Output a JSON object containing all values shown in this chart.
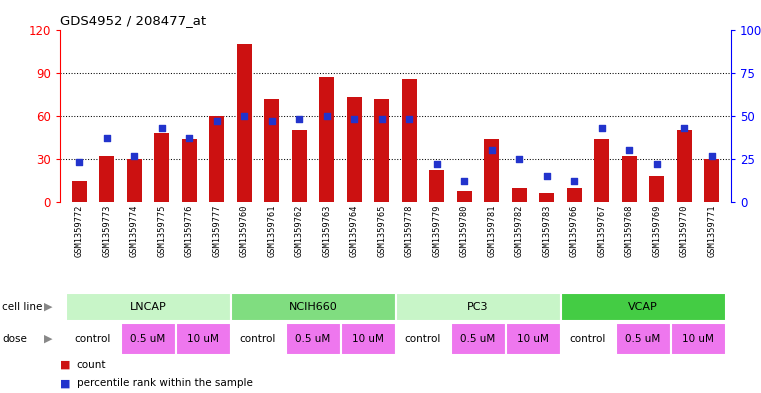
{
  "title": "GDS4952 / 208477_at",
  "samples": [
    "GSM1359772",
    "GSM1359773",
    "GSM1359774",
    "GSM1359775",
    "GSM1359776",
    "GSM1359777",
    "GSM1359760",
    "GSM1359761",
    "GSM1359762",
    "GSM1359763",
    "GSM1359764",
    "GSM1359765",
    "GSM1359778",
    "GSM1359779",
    "GSM1359780",
    "GSM1359781",
    "GSM1359782",
    "GSM1359783",
    "GSM1359766",
    "GSM1359767",
    "GSM1359768",
    "GSM1359769",
    "GSM1359770",
    "GSM1359771"
  ],
  "counts": [
    15,
    32,
    30,
    48,
    44,
    60,
    110,
    72,
    50,
    87,
    73,
    72,
    86,
    22,
    8,
    44,
    10,
    6,
    10,
    44,
    32,
    18,
    50,
    30
  ],
  "percentiles": [
    23,
    37,
    27,
    43,
    37,
    47,
    50,
    47,
    48,
    50,
    48,
    48,
    48,
    22,
    12,
    30,
    25,
    15,
    12,
    43,
    30,
    22,
    43,
    27
  ],
  "ylim_left": [
    0,
    120
  ],
  "ylim_right": [
    0,
    100
  ],
  "yticks_left": [
    0,
    30,
    60,
    90,
    120
  ],
  "yticks_right": [
    0,
    25,
    50,
    75,
    100
  ],
  "bar_color": "#cc1111",
  "dot_color": "#2233cc",
  "cell_lines": [
    {
      "name": "LNCAP",
      "start": 0,
      "end": 6,
      "color": "#c8f5c8"
    },
    {
      "name": "NCIH660",
      "start": 6,
      "end": 12,
      "color": "#80dd80"
    },
    {
      "name": "PC3",
      "start": 12,
      "end": 18,
      "color": "#c8f5c8"
    },
    {
      "name": "VCAP",
      "start": 18,
      "end": 24,
      "color": "#44cc44"
    }
  ],
  "dose_groups": [
    [
      [
        "control",
        0,
        2,
        "#ffffff"
      ],
      [
        "0.5 uM",
        2,
        4,
        "#ee77ee"
      ],
      [
        "10 uM",
        4,
        6,
        "#ee77ee"
      ]
    ],
    [
      [
        "control",
        6,
        8,
        "#ffffff"
      ],
      [
        "0.5 uM",
        8,
        10,
        "#ee77ee"
      ],
      [
        "10 uM",
        10,
        12,
        "#ee77ee"
      ]
    ],
    [
      [
        "control",
        12,
        14,
        "#ffffff"
      ],
      [
        "0.5 uM",
        14,
        16,
        "#ee77ee"
      ],
      [
        "10 uM",
        16,
        18,
        "#ee77ee"
      ]
    ],
    [
      [
        "control",
        18,
        20,
        "#ffffff"
      ],
      [
        "0.5 uM",
        20,
        22,
        "#ee77ee"
      ],
      [
        "10 uM",
        22,
        24,
        "#ee77ee"
      ]
    ]
  ],
  "xtick_bg": "#d8d8d8",
  "separator_color": "#888888"
}
